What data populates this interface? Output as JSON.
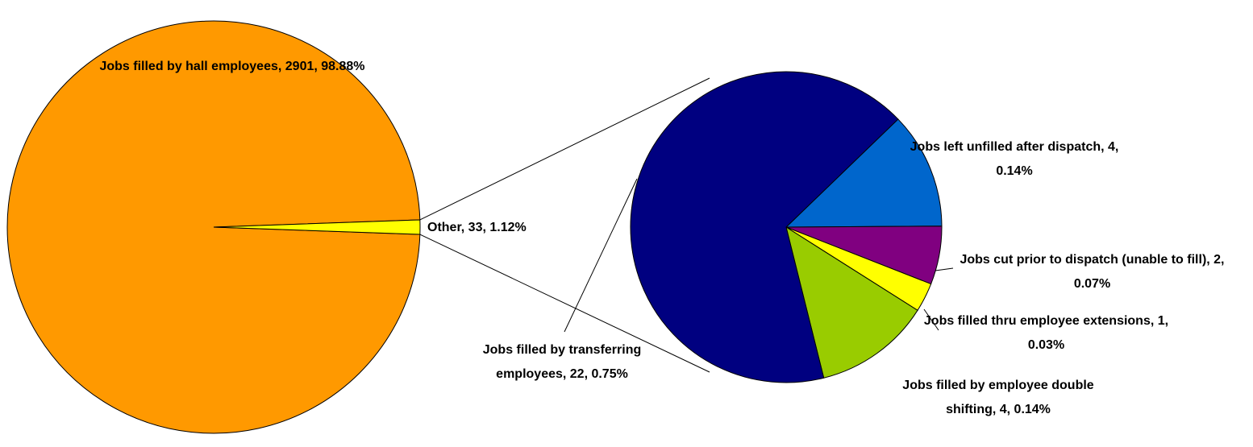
{
  "chart_data": {
    "type": "pie-of-pie",
    "pies": [
      {
        "values": [
          2901,
          33
        ],
        "value_labels": [
          "Jobs filled by hall employees, 2901, 98.88%",
          "Other, 33, 1.12%"
        ],
        "colors": [
          "#FF9900",
          "#FFFF00"
        ]
      },
      {
        "values": [
          4,
          2,
          1,
          4,
          22
        ],
        "value_labels": [
          "Jobs left unfilled after dispatch, 4, 0.14%",
          "Jobs cut prior to dispatch (unable to fill), 2, 0.07%",
          "Jobs filled thru employee extensions, 1, 0.03%",
          "Jobs filled by employee double shifting, 4, 0.14%",
          "Jobs filled by transferring employees, 22, 0.75%"
        ],
        "colors": [
          "#0066CC",
          "#800080",
          "#FFFF00",
          "#99CC00",
          "#000080"
        ]
      }
    ]
  }
}
